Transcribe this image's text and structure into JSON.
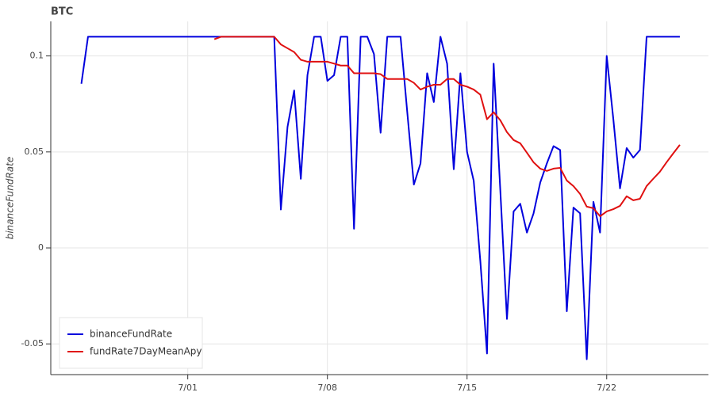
{
  "chart_data": {
    "type": "line",
    "title": "BTC",
    "y_label": "binanceFundRate",
    "xlim": [
      -4.6,
      94.3
    ],
    "xticks": [
      {
        "value": 16,
        "label": "7/01"
      },
      {
        "value": 37,
        "label": "7/08"
      },
      {
        "value": 58,
        "label": "7/15"
      },
      {
        "value": 79,
        "label": "7/22"
      }
    ],
    "ylim": [
      -0.066,
      0.118
    ],
    "yticks": [
      -0.05,
      0,
      0.05,
      0.1
    ],
    "grid": true,
    "legend": "bottom-left",
    "series": [
      {
        "name": "binanceFundRate",
        "color": "#0000dd",
        "values": [
          0.0855,
          0.11,
          0.11,
          0.11,
          0.11,
          0.11,
          0.11,
          0.11,
          0.11,
          0.11,
          0.11,
          0.11,
          0.11,
          0.11,
          0.11,
          0.11,
          0.11,
          0.11,
          0.11,
          0.11,
          0.11,
          0.11,
          0.11,
          0.11,
          0.11,
          0.11,
          0.11,
          0.11,
          0.11,
          0.11,
          0.02,
          0.063,
          0.082,
          0.036,
          0.09,
          0.11,
          0.11,
          0.087,
          0.09,
          0.11,
          0.11,
          0.01,
          0.11,
          0.11,
          0.101,
          0.06,
          0.11,
          0.11,
          0.11,
          0.071,
          0.033,
          0.044,
          0.091,
          0.076,
          0.11,
          0.096,
          0.041,
          0.091,
          0.05,
          0.035,
          -0.007,
          -0.055,
          0.096,
          0.03,
          -0.037,
          0.019,
          0.023,
          0.008,
          0.018,
          0.034,
          0.044,
          0.053,
          0.051,
          -0.033,
          0.021,
          0.018,
          -0.058,
          0.024,
          0.008,
          0.1,
          0.067,
          0.031,
          0.052,
          0.047,
          0.051,
          0.11,
          0.11,
          0.11,
          0.11,
          0.11,
          0.11
        ]
      },
      {
        "name": "fundRate7DayMeanApy",
        "color": "#e01010",
        "values": [
          null,
          null,
          null,
          null,
          null,
          null,
          null,
          null,
          null,
          null,
          null,
          null,
          null,
          null,
          null,
          null,
          null,
          null,
          null,
          null,
          0.1087,
          0.11,
          0.11,
          0.11,
          0.11,
          0.11,
          0.11,
          0.11,
          0.11,
          0.11,
          0.106,
          0.104,
          0.102,
          0.098,
          0.097,
          0.097,
          0.097,
          0.097,
          0.096,
          0.095,
          0.095,
          0.091,
          0.091,
          0.091,
          0.091,
          0.0905,
          0.088,
          0.088,
          0.088,
          0.088,
          0.086,
          0.0825,
          0.084,
          0.085,
          0.085,
          0.088,
          0.088,
          0.085,
          0.084,
          0.0825,
          0.0798,
          0.067,
          0.0707,
          0.0665,
          0.0603,
          0.0562,
          0.0545,
          0.0496,
          0.0446,
          0.0413,
          0.0401,
          0.0413,
          0.0417,
          0.0351,
          0.0322,
          0.0281,
          0.0215,
          0.0207,
          0.0165,
          0.019,
          0.0202,
          0.0219,
          0.0269,
          0.0248,
          0.0256,
          0.0322,
          0.036,
          0.0397,
          0.0446,
          0.0492,
          0.0537
        ]
      }
    ]
  }
}
